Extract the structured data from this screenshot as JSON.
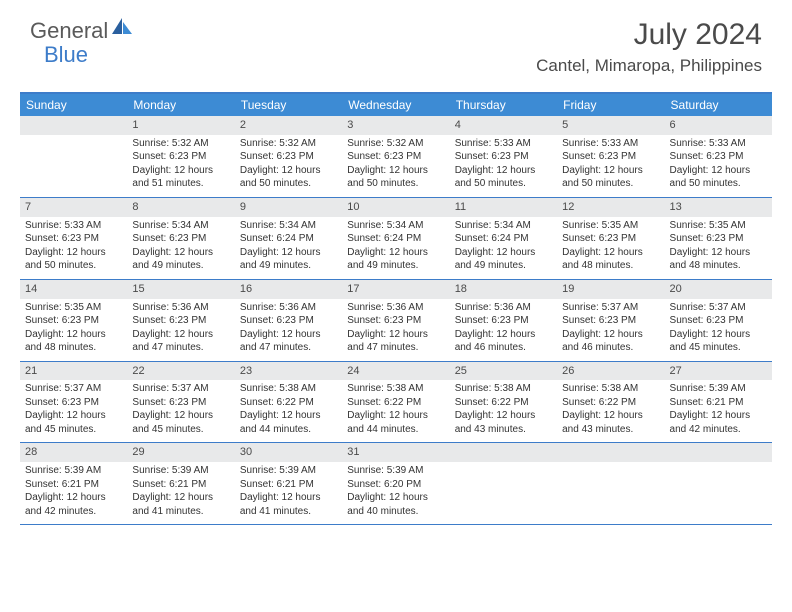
{
  "logo": {
    "text1": "General",
    "text2": "Blue"
  },
  "title": "July 2024",
  "location": "Cantel, Mimaropa, Philippines",
  "weekdays": [
    "Sunday",
    "Monday",
    "Tuesday",
    "Wednesday",
    "Thursday",
    "Friday",
    "Saturday"
  ],
  "colors": {
    "headerBg": "#3d8bd4",
    "borderTop": "#3d7cc9",
    "dayNumBg": "#e8e9ea",
    "text": "#4a4a4a",
    "logoBlue": "#3d7cc9"
  },
  "weeks": [
    [
      null,
      {
        "num": "1",
        "sunrise": "5:32 AM",
        "sunset": "6:23 PM",
        "daylight": "12 hours and 51 minutes."
      },
      {
        "num": "2",
        "sunrise": "5:32 AM",
        "sunset": "6:23 PM",
        "daylight": "12 hours and 50 minutes."
      },
      {
        "num": "3",
        "sunrise": "5:32 AM",
        "sunset": "6:23 PM",
        "daylight": "12 hours and 50 minutes."
      },
      {
        "num": "4",
        "sunrise": "5:33 AM",
        "sunset": "6:23 PM",
        "daylight": "12 hours and 50 minutes."
      },
      {
        "num": "5",
        "sunrise": "5:33 AM",
        "sunset": "6:23 PM",
        "daylight": "12 hours and 50 minutes."
      },
      {
        "num": "6",
        "sunrise": "5:33 AM",
        "sunset": "6:23 PM",
        "daylight": "12 hours and 50 minutes."
      }
    ],
    [
      {
        "num": "7",
        "sunrise": "5:33 AM",
        "sunset": "6:23 PM",
        "daylight": "12 hours and 50 minutes."
      },
      {
        "num": "8",
        "sunrise": "5:34 AM",
        "sunset": "6:23 PM",
        "daylight": "12 hours and 49 minutes."
      },
      {
        "num": "9",
        "sunrise": "5:34 AM",
        "sunset": "6:24 PM",
        "daylight": "12 hours and 49 minutes."
      },
      {
        "num": "10",
        "sunrise": "5:34 AM",
        "sunset": "6:24 PM",
        "daylight": "12 hours and 49 minutes."
      },
      {
        "num": "11",
        "sunrise": "5:34 AM",
        "sunset": "6:24 PM",
        "daylight": "12 hours and 49 minutes."
      },
      {
        "num": "12",
        "sunrise": "5:35 AM",
        "sunset": "6:23 PM",
        "daylight": "12 hours and 48 minutes."
      },
      {
        "num": "13",
        "sunrise": "5:35 AM",
        "sunset": "6:23 PM",
        "daylight": "12 hours and 48 minutes."
      }
    ],
    [
      {
        "num": "14",
        "sunrise": "5:35 AM",
        "sunset": "6:23 PM",
        "daylight": "12 hours and 48 minutes."
      },
      {
        "num": "15",
        "sunrise": "5:36 AM",
        "sunset": "6:23 PM",
        "daylight": "12 hours and 47 minutes."
      },
      {
        "num": "16",
        "sunrise": "5:36 AM",
        "sunset": "6:23 PM",
        "daylight": "12 hours and 47 minutes."
      },
      {
        "num": "17",
        "sunrise": "5:36 AM",
        "sunset": "6:23 PM",
        "daylight": "12 hours and 47 minutes."
      },
      {
        "num": "18",
        "sunrise": "5:36 AM",
        "sunset": "6:23 PM",
        "daylight": "12 hours and 46 minutes."
      },
      {
        "num": "19",
        "sunrise": "5:37 AM",
        "sunset": "6:23 PM",
        "daylight": "12 hours and 46 minutes."
      },
      {
        "num": "20",
        "sunrise": "5:37 AM",
        "sunset": "6:23 PM",
        "daylight": "12 hours and 45 minutes."
      }
    ],
    [
      {
        "num": "21",
        "sunrise": "5:37 AM",
        "sunset": "6:23 PM",
        "daylight": "12 hours and 45 minutes."
      },
      {
        "num": "22",
        "sunrise": "5:37 AM",
        "sunset": "6:23 PM",
        "daylight": "12 hours and 45 minutes."
      },
      {
        "num": "23",
        "sunrise": "5:38 AM",
        "sunset": "6:22 PM",
        "daylight": "12 hours and 44 minutes."
      },
      {
        "num": "24",
        "sunrise": "5:38 AM",
        "sunset": "6:22 PM",
        "daylight": "12 hours and 44 minutes."
      },
      {
        "num": "25",
        "sunrise": "5:38 AM",
        "sunset": "6:22 PM",
        "daylight": "12 hours and 43 minutes."
      },
      {
        "num": "26",
        "sunrise": "5:38 AM",
        "sunset": "6:22 PM",
        "daylight": "12 hours and 43 minutes."
      },
      {
        "num": "27",
        "sunrise": "5:39 AM",
        "sunset": "6:21 PM",
        "daylight": "12 hours and 42 minutes."
      }
    ],
    [
      {
        "num": "28",
        "sunrise": "5:39 AM",
        "sunset": "6:21 PM",
        "daylight": "12 hours and 42 minutes."
      },
      {
        "num": "29",
        "sunrise": "5:39 AM",
        "sunset": "6:21 PM",
        "daylight": "12 hours and 41 minutes."
      },
      {
        "num": "30",
        "sunrise": "5:39 AM",
        "sunset": "6:21 PM",
        "daylight": "12 hours and 41 minutes."
      },
      {
        "num": "31",
        "sunrise": "5:39 AM",
        "sunset": "6:20 PM",
        "daylight": "12 hours and 40 minutes."
      },
      null,
      null,
      null
    ]
  ]
}
